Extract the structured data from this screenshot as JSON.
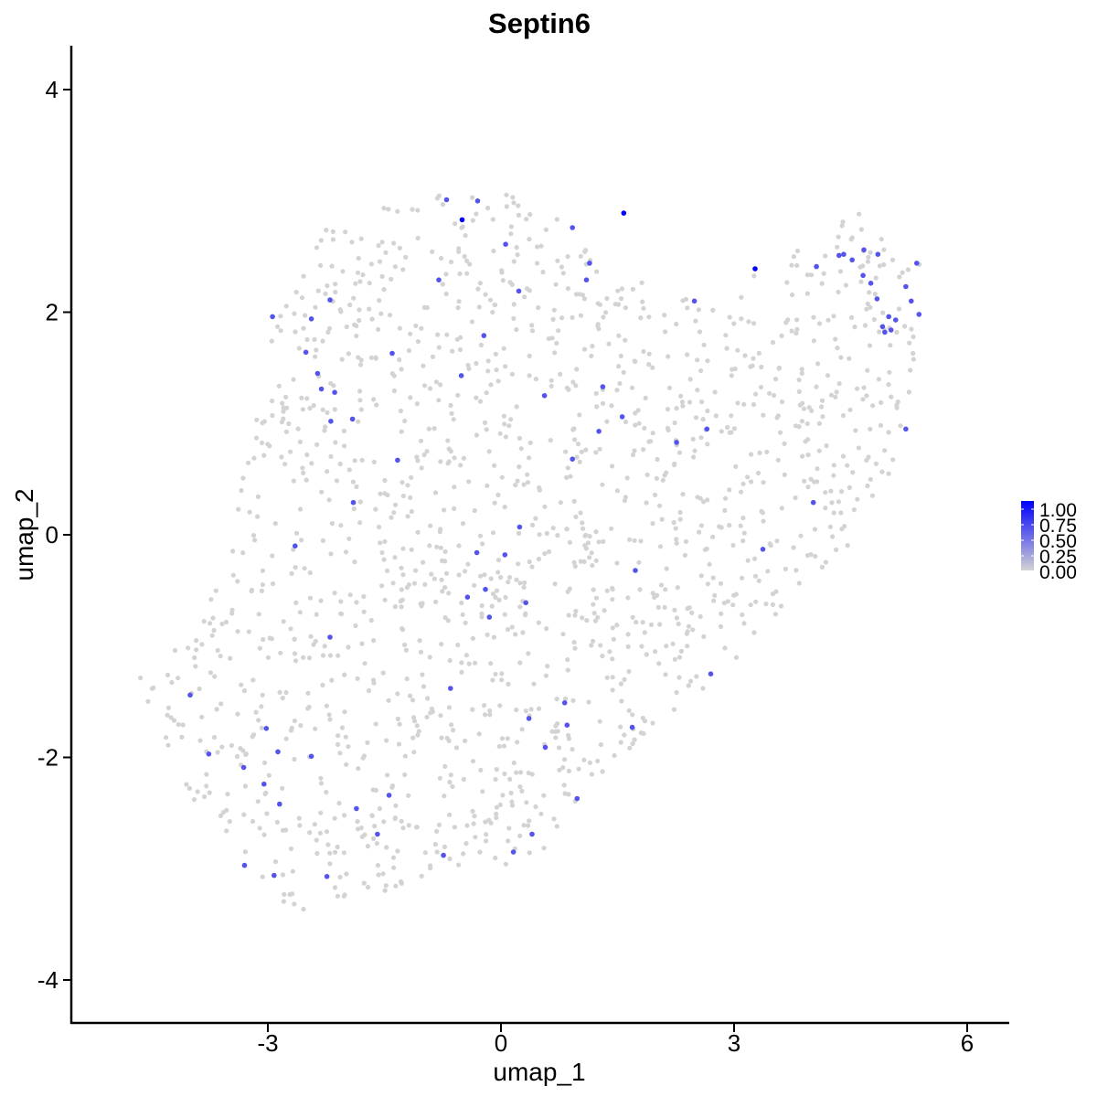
{
  "chart_data": {
    "type": "scatter",
    "title": "Septin6",
    "xlabel": "umap_1",
    "ylabel": "umap_2",
    "xlim": [
      -6.0,
      6.6
    ],
    "ylim": [
      -4.3,
      4.4
    ],
    "xticks": [
      -3,
      0,
      3,
      6
    ],
    "yticks": [
      -4,
      -2,
      0,
      2,
      4
    ],
    "xtick_labels": [
      "-3",
      "0",
      "3",
      "6"
    ],
    "ytick_labels": [
      "-4",
      "-2",
      "0",
      "2",
      "4"
    ],
    "grid": false,
    "legend": {
      "placement": "right",
      "kind": "colorbar",
      "ticks": [
        "1.00",
        "0.75",
        "0.50",
        "0.25",
        "0.00"
      ],
      "range": [
        0,
        1
      ],
      "low_color": "#d3d3d3",
      "high_color": "#0000ff"
    },
    "point_colors": {
      "low": "#d3d3d3",
      "high": "#0000ff"
    },
    "expressing_points": [
      {
        "x": -0.5,
        "y": 2.83,
        "v": 1.0
      },
      {
        "x": 1.58,
        "y": 2.89,
        "v": 1.0
      },
      {
        "x": 3.27,
        "y": 2.39,
        "v": 1.0
      },
      {
        "x": -0.3,
        "y": 3.0,
        "v": 0.6
      },
      {
        "x": -0.7,
        "y": 3.01,
        "v": 0.6
      },
      {
        "x": 0.92,
        "y": 2.76,
        "v": 0.6
      },
      {
        "x": 0.06,
        "y": 2.61,
        "v": 0.6
      },
      {
        "x": 1.14,
        "y": 2.44,
        "v": 0.6
      },
      {
        "x": 1.1,
        "y": 2.29,
        "v": 0.6
      },
      {
        "x": -0.8,
        "y": 2.29,
        "v": 0.6
      },
      {
        "x": 0.23,
        "y": 2.19,
        "v": 0.6
      },
      {
        "x": -2.2,
        "y": 2.11,
        "v": 0.6
      },
      {
        "x": -2.94,
        "y": 1.96,
        "v": 0.6
      },
      {
        "x": -2.44,
        "y": 1.94,
        "v": 0.6
      },
      {
        "x": -0.22,
        "y": 1.79,
        "v": 0.6
      },
      {
        "x": -2.51,
        "y": 1.64,
        "v": 0.6
      },
      {
        "x": -1.4,
        "y": 1.63,
        "v": 0.6
      },
      {
        "x": -2.36,
        "y": 1.45,
        "v": 0.6
      },
      {
        "x": -0.51,
        "y": 1.43,
        "v": 0.6
      },
      {
        "x": -2.31,
        "y": 1.31,
        "v": 0.6
      },
      {
        "x": 1.31,
        "y": 1.33,
        "v": 0.6
      },
      {
        "x": -2.14,
        "y": 1.28,
        "v": 0.6
      },
      {
        "x": 0.56,
        "y": 1.25,
        "v": 0.6
      },
      {
        "x": 1.56,
        "y": 1.06,
        "v": 0.6
      },
      {
        "x": -2.19,
        "y": 1.02,
        "v": 0.6
      },
      {
        "x": -1.91,
        "y": 1.04,
        "v": 0.6
      },
      {
        "x": 1.26,
        "y": 0.93,
        "v": 0.6
      },
      {
        "x": 2.65,
        "y": 0.95,
        "v": 0.6
      },
      {
        "x": 2.26,
        "y": 0.83,
        "v": 0.6
      },
      {
        "x": 0.92,
        "y": 0.68,
        "v": 0.6
      },
      {
        "x": -1.33,
        "y": 0.67,
        "v": 0.6
      },
      {
        "x": 2.49,
        "y": 2.1,
        "v": 0.6
      },
      {
        "x": -1.9,
        "y": 0.29,
        "v": 0.6
      },
      {
        "x": 4.02,
        "y": 0.29,
        "v": 0.6
      },
      {
        "x": 0.24,
        "y": 0.07,
        "v": 0.6
      },
      {
        "x": -2.65,
        "y": -0.1,
        "v": 0.6
      },
      {
        "x": -0.31,
        "y": -0.16,
        "v": 0.6
      },
      {
        "x": 0.05,
        "y": -0.18,
        "v": 0.6
      },
      {
        "x": 3.37,
        "y": -0.13,
        "v": 0.6
      },
      {
        "x": 1.73,
        "y": -0.32,
        "v": 0.6
      },
      {
        "x": -0.2,
        "y": -0.49,
        "v": 0.6
      },
      {
        "x": -0.43,
        "y": -0.56,
        "v": 0.6
      },
      {
        "x": 0.32,
        "y": -0.61,
        "v": 0.6
      },
      {
        "x": -0.15,
        "y": -0.74,
        "v": 0.6
      },
      {
        "x": -2.2,
        "y": -0.92,
        "v": 0.6
      },
      {
        "x": 2.7,
        "y": -1.25,
        "v": 0.6
      },
      {
        "x": -0.65,
        "y": -1.38,
        "v": 0.6
      },
      {
        "x": -4.0,
        "y": -1.44,
        "v": 0.6
      },
      {
        "x": 0.82,
        "y": -1.51,
        "v": 0.6
      },
      {
        "x": 0.36,
        "y": -1.65,
        "v": 0.6
      },
      {
        "x": -3.02,
        "y": -1.74,
        "v": 0.6
      },
      {
        "x": 0.85,
        "y": -1.71,
        "v": 0.6
      },
      {
        "x": 1.69,
        "y": -1.73,
        "v": 0.6
      },
      {
        "x": 0.57,
        "y": -1.91,
        "v": 0.6
      },
      {
        "x": -2.87,
        "y": -1.95,
        "v": 0.6
      },
      {
        "x": -3.76,
        "y": -1.97,
        "v": 0.6
      },
      {
        "x": -2.44,
        "y": -1.99,
        "v": 0.6
      },
      {
        "x": -3.31,
        "y": -2.09,
        "v": 0.6
      },
      {
        "x": -3.05,
        "y": -2.24,
        "v": 0.6
      },
      {
        "x": -1.44,
        "y": -2.34,
        "v": 0.6
      },
      {
        "x": 0.98,
        "y": -2.37,
        "v": 0.6
      },
      {
        "x": -2.85,
        "y": -2.42,
        "v": 0.6
      },
      {
        "x": -1.86,
        "y": -2.46,
        "v": 0.6
      },
      {
        "x": -1.59,
        "y": -2.69,
        "v": 0.6
      },
      {
        "x": 0.4,
        "y": -2.69,
        "v": 0.6
      },
      {
        "x": 0.16,
        "y": -2.85,
        "v": 0.6
      },
      {
        "x": -0.74,
        "y": -2.88,
        "v": 0.6
      },
      {
        "x": -3.3,
        "y": -2.97,
        "v": 0.6
      },
      {
        "x": -2.92,
        "y": -3.06,
        "v": 0.6
      },
      {
        "x": -2.24,
        "y": -3.07,
        "v": 0.6
      },
      {
        "x": 4.06,
        "y": 2.41,
        "v": 0.6
      },
      {
        "x": 4.35,
        "y": 2.51,
        "v": 0.6
      },
      {
        "x": 4.41,
        "y": 2.52,
        "v": 0.6
      },
      {
        "x": 4.52,
        "y": 2.47,
        "v": 0.6
      },
      {
        "x": 4.67,
        "y": 2.56,
        "v": 0.6
      },
      {
        "x": 4.85,
        "y": 2.52,
        "v": 0.6
      },
      {
        "x": 4.66,
        "y": 2.33,
        "v": 0.6
      },
      {
        "x": 4.76,
        "y": 2.26,
        "v": 0.6
      },
      {
        "x": 5.21,
        "y": 2.23,
        "v": 0.6
      },
      {
        "x": 5.35,
        "y": 2.44,
        "v": 0.6
      },
      {
        "x": 4.84,
        "y": 2.12,
        "v": 0.6
      },
      {
        "x": 5.28,
        "y": 2.1,
        "v": 0.6
      },
      {
        "x": 4.99,
        "y": 1.96,
        "v": 0.6
      },
      {
        "x": 5.08,
        "y": 1.93,
        "v": 0.6
      },
      {
        "x": 4.91,
        "y": 1.87,
        "v": 0.6
      },
      {
        "x": 4.94,
        "y": 1.82,
        "v": 0.6
      },
      {
        "x": 5.02,
        "y": 1.84,
        "v": 0.6
      },
      {
        "x": 5.38,
        "y": 1.98,
        "v": 0.6
      },
      {
        "x": 5.21,
        "y": 0.95,
        "v": 0.6
      }
    ],
    "background_points": {
      "note": "",
      "seed": 42
    }
  }
}
